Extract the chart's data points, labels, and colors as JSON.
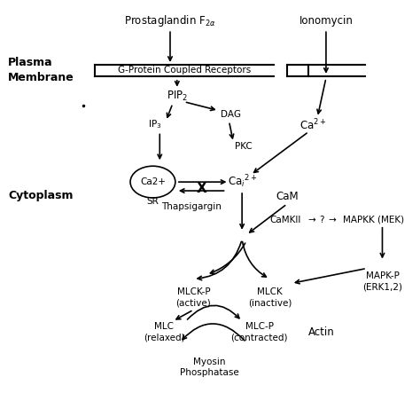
{
  "bg_color": "#ffffff",
  "fig_width": 4.74,
  "fig_height": 4.43,
  "labels": {
    "prostaglandin": "Prostaglandin F$_{2\\alpha}$",
    "ionomycin": "Ionomycin",
    "gpcr": "G-Protein Coupled Receptors",
    "plasma_membrane": "Plasma\nMembrane",
    "cytoplasm": "Cytoplasm",
    "pip2": "PIP$_2$",
    "dag": "DAG",
    "ip3": "IP$_3$",
    "pkc": "PKC",
    "ca2plus_sr": "Ca2+",
    "sr": "SR",
    "cai2plus": "Ca$_i$$^{2+}$",
    "ca2plus_ion": "Ca$^{2+}$",
    "cam": "CaM",
    "thapsigargin": "Thapsigargin",
    "camkii_row": "CaMKII → ? → MAPKK (MEK)",
    "mlck_p": "MLCK-P\n(active)",
    "mlck": "MLCK\n(inactive)",
    "mapk_p": "MAPK-P\n(ERK1,2)",
    "mlc": "MLC\n(relaxed)",
    "mlc_p": "MLC-P\n(contracted)",
    "actin": "Actin",
    "myosin_phosphatase": "Myosin\nPhosphatase"
  }
}
